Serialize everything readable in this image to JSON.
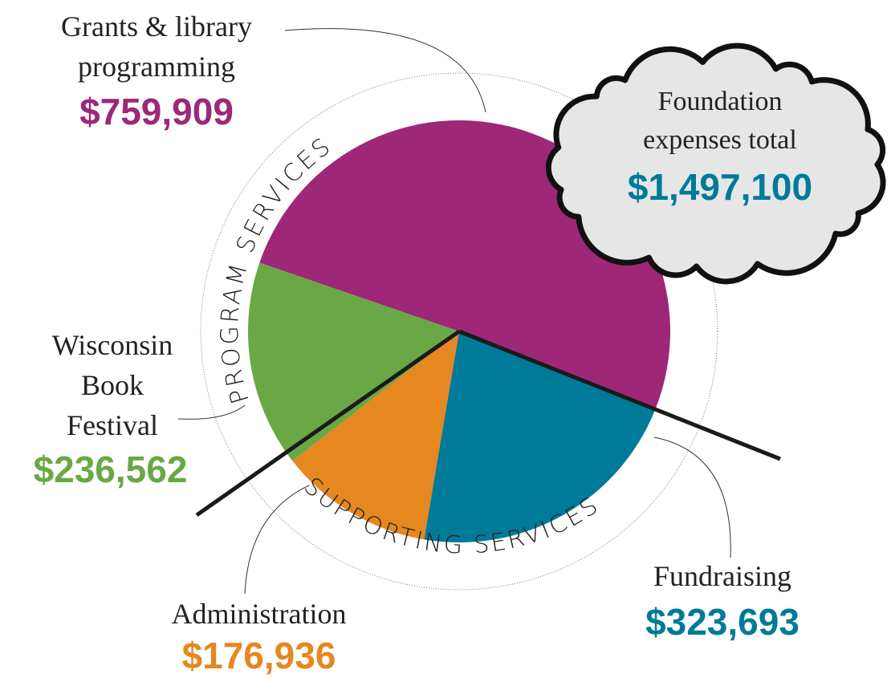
{
  "chart_data": {
    "type": "pie",
    "categories": [
      "Grants & library programming",
      "Fundraising",
      "Administration",
      "Wisconsin Book Festival"
    ],
    "values": [
      759909,
      323693,
      176936,
      236562
    ],
    "value_labels": [
      "$759,909",
      "$323,693",
      "$176,936",
      "$236,562"
    ],
    "colors": [
      "#9e2778",
      "#007a99",
      "#e6871f",
      "#69a845"
    ],
    "groups": [
      "PROGRAM SERVICES",
      "SUPPORTING SERVICES"
    ],
    "total_title": "Foundation expenses total",
    "total": 1497100,
    "total_label": "$1,497,100"
  }
}
